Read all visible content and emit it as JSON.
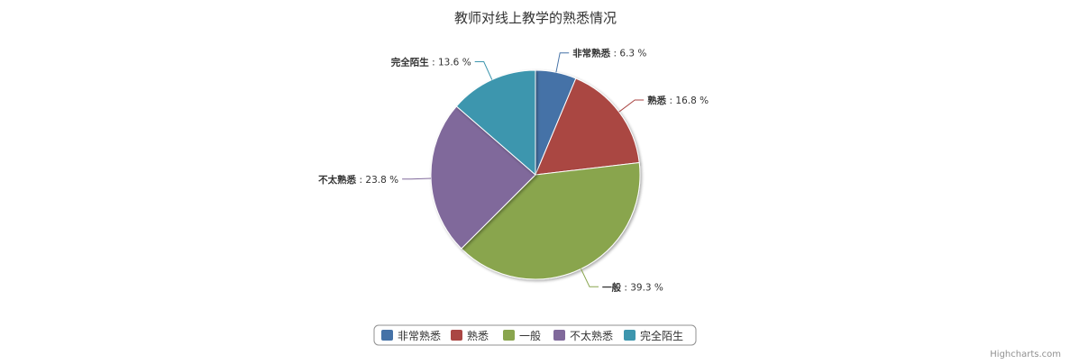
{
  "chart_data": {
    "type": "pie",
    "title": "教师对线上教学的熟悉情况",
    "value_format": "{name} : {value} %",
    "slices": [
      {
        "name": "非常熟悉",
        "value": 6.3,
        "color": "#4572A7"
      },
      {
        "name": "熟悉",
        "value": 16.8,
        "color": "#AA4643"
      },
      {
        "name": "一般",
        "value": 39.3,
        "color": "#89A54E"
      },
      {
        "name": "不太熟悉",
        "value": 23.8,
        "color": "#80699B"
      },
      {
        "name": "完全陌生",
        "value": 13.6,
        "color": "#3D96AE"
      }
    ],
    "legend": {
      "placement": "bottom-center",
      "items": [
        "非常熟悉",
        "熟悉",
        "一般",
        "不太熟悉",
        "完全陌生"
      ]
    },
    "start_angle": "12 o'clock, clockwise"
  },
  "credits": "Highcharts.com"
}
